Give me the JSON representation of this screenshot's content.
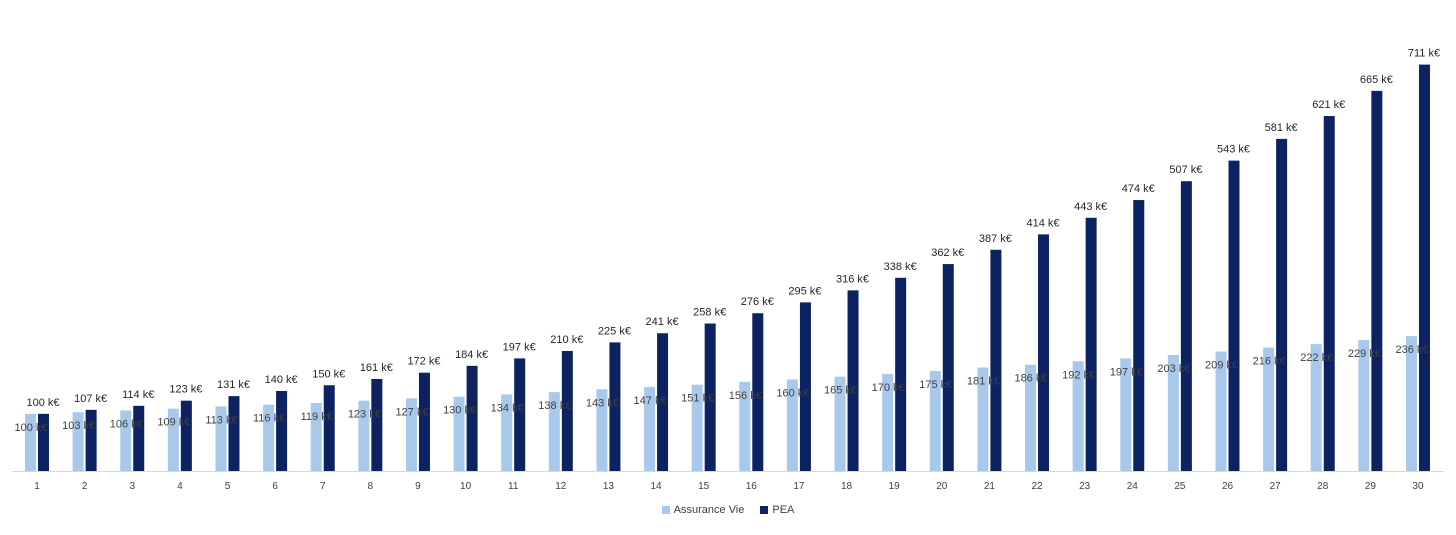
{
  "chart_data": {
    "type": "bar",
    "categories": [
      "1",
      "2",
      "3",
      "4",
      "5",
      "6",
      "7",
      "8",
      "9",
      "10",
      "11",
      "12",
      "13",
      "14",
      "15",
      "16",
      "17",
      "18",
      "19",
      "20",
      "21",
      "22",
      "23",
      "24",
      "25",
      "26",
      "27",
      "28",
      "29",
      "30"
    ],
    "series": [
      {
        "name": "Assurance Vie",
        "color": "#a9c9ec",
        "values": [
          100,
          103,
          106,
          109,
          113,
          116,
          119,
          123,
          127,
          130,
          134,
          138,
          143,
          147,
          151,
          156,
          160,
          165,
          170,
          175,
          181,
          186,
          192,
          197,
          203,
          209,
          216,
          222,
          229,
          236
        ],
        "labels": [
          "100 k€",
          "103 k€",
          "106 k€",
          "109 k€",
          "113 k€",
          "116 k€",
          "119 k€",
          "123 k€",
          "127 k€",
          "130 k€",
          "134 k€",
          "138 k€",
          "143 k€",
          "147 k€",
          "151 k€",
          "156 k€",
          "160 k€",
          "165 k€",
          "170 k€",
          "175 k€",
          "181 k€",
          "186 k€",
          "192 k€",
          "197 k€",
          "203 k€",
          "209 k€",
          "216 k€",
          "222 k€",
          "229 k€",
          "236 k€"
        ]
      },
      {
        "name": "PEA",
        "color": "#0d2260",
        "values": [
          100,
          107,
          114,
          123,
          131,
          140,
          150,
          161,
          172,
          184,
          197,
          210,
          225,
          241,
          258,
          276,
          295,
          316,
          338,
          362,
          387,
          414,
          443,
          474,
          507,
          543,
          581,
          621,
          665,
          711
        ],
        "labels": [
          "100 k€",
          "107 k€",
          "114 k€",
          "123 k€",
          "131 k€",
          "140 k€",
          "150 k€",
          "161 k€",
          "172 k€",
          "184 k€",
          "197 k€",
          "210 k€",
          "225 k€",
          "241 k€",
          "258 k€",
          "276 k€",
          "295 k€",
          "316 k€",
          "338 k€",
          "362 k€",
          "387 k€",
          "414 k€",
          "443 k€",
          "474 k€",
          "507 k€",
          "543 k€",
          "581 k€",
          "621 k€",
          "665 k€",
          "711 k€"
        ]
      }
    ],
    "title": "",
    "xlabel": "",
    "ylabel": "",
    "y_axis_visible": false,
    "grid": false,
    "legend_position": "bottom"
  }
}
